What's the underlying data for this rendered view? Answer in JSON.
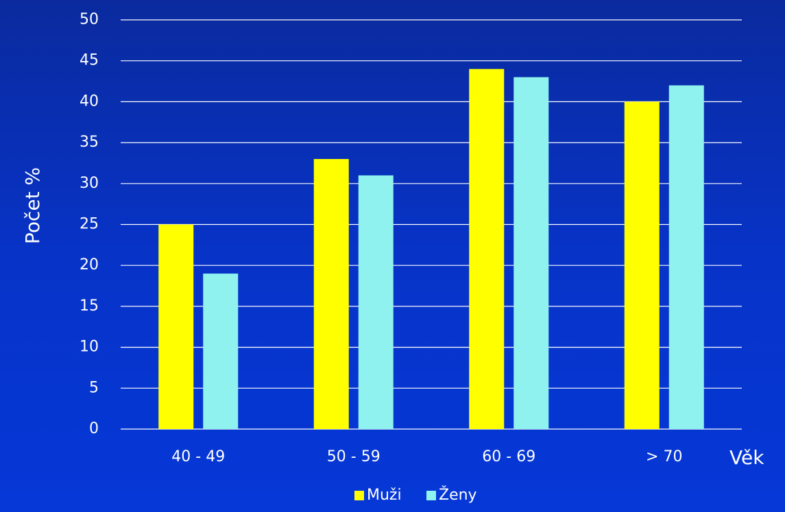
{
  "chart_data": {
    "type": "bar",
    "categories": [
      "40 - 49",
      "50 - 59",
      "60 - 69",
      "> 70"
    ],
    "series": [
      {
        "name": "Muži",
        "values": [
          25,
          33,
          44,
          40
        ],
        "color": "#ffff00"
      },
      {
        "name": "Ženy",
        "values": [
          19,
          31,
          43,
          42
        ],
        "color": "#8ff2ee"
      }
    ],
    "title": "",
    "xlabel": "Věk",
    "ylabel": "Počet %",
    "ylim": [
      0,
      50
    ],
    "yticks": [
      0,
      5,
      10,
      15,
      20,
      25,
      30,
      35,
      40,
      45,
      50
    ],
    "grid": true,
    "legend_position": "bottom"
  }
}
